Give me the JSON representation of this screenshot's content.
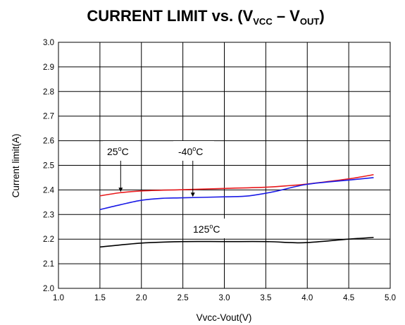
{
  "chart_data": {
    "type": "line",
    "title": {
      "main": "CURRENT LIMIT vs. (V",
      "sub1": "VCC",
      "mid": " – V",
      "sub2": "OUT",
      "end": ")"
    },
    "xlabel": "Vvcc-Vout(V)",
    "ylabel": "Current limit(A)",
    "xlim": [
      1.0,
      5.0
    ],
    "ylim": [
      2.0,
      3.0
    ],
    "x_ticks": [
      1.0,
      1.5,
      2.0,
      2.5,
      3.0,
      3.5,
      4.0,
      4.5,
      5.0
    ],
    "x_tick_labels": [
      "1.0",
      "1.5",
      "2.0",
      "2.5",
      "3.0",
      "3.5",
      "4.0",
      "4.5",
      "5.0"
    ],
    "y_ticks": [
      2.0,
      2.1,
      2.2,
      2.3,
      2.4,
      2.5,
      2.6,
      2.7,
      2.8,
      2.9,
      3.0
    ],
    "y_tick_labels": [
      "2.0",
      "2.1",
      "2.2",
      "2.3",
      "2.4",
      "2.5",
      "2.6",
      "2.7",
      "2.8",
      "2.9",
      "3.0"
    ],
    "grid": true,
    "series": [
      {
        "name": "25°C",
        "color": "#e8191c",
        "x": [
          1.5,
          1.75,
          2.0,
          2.5,
          3.0,
          3.5,
          3.8,
          4.0,
          4.5,
          4.8
        ],
        "y": [
          2.376,
          2.389,
          2.396,
          2.401,
          2.406,
          2.411,
          2.418,
          2.424,
          2.445,
          2.462
        ]
      },
      {
        "name": "-40°C",
        "color": "#1a1ae6",
        "x": [
          1.5,
          1.75,
          2.0,
          2.25,
          2.5,
          3.0,
          3.3,
          3.6,
          4.0,
          4.5,
          4.8
        ],
        "y": [
          2.32,
          2.34,
          2.358,
          2.366,
          2.368,
          2.372,
          2.376,
          2.393,
          2.423,
          2.44,
          2.45
        ]
      },
      {
        "name": "125°C",
        "color": "#000000",
        "x": [
          1.5,
          2.0,
          2.5,
          3.0,
          3.5,
          3.8,
          4.0,
          4.5,
          4.8
        ],
        "y": [
          2.168,
          2.184,
          2.19,
          2.19,
          2.19,
          2.186,
          2.186,
          2.2,
          2.207
        ]
      }
    ],
    "annotations": [
      {
        "base": "25",
        "sup": "o",
        "unit": "C",
        "arrow_x": 1.75,
        "arrow_y": 2.389
      },
      {
        "base": "-40",
        "sup": "o",
        "unit": "C",
        "arrow_x": 2.62,
        "arrow_y": 2.369
      },
      {
        "base": "125",
        "sup": "o",
        "unit": "C"
      }
    ]
  }
}
